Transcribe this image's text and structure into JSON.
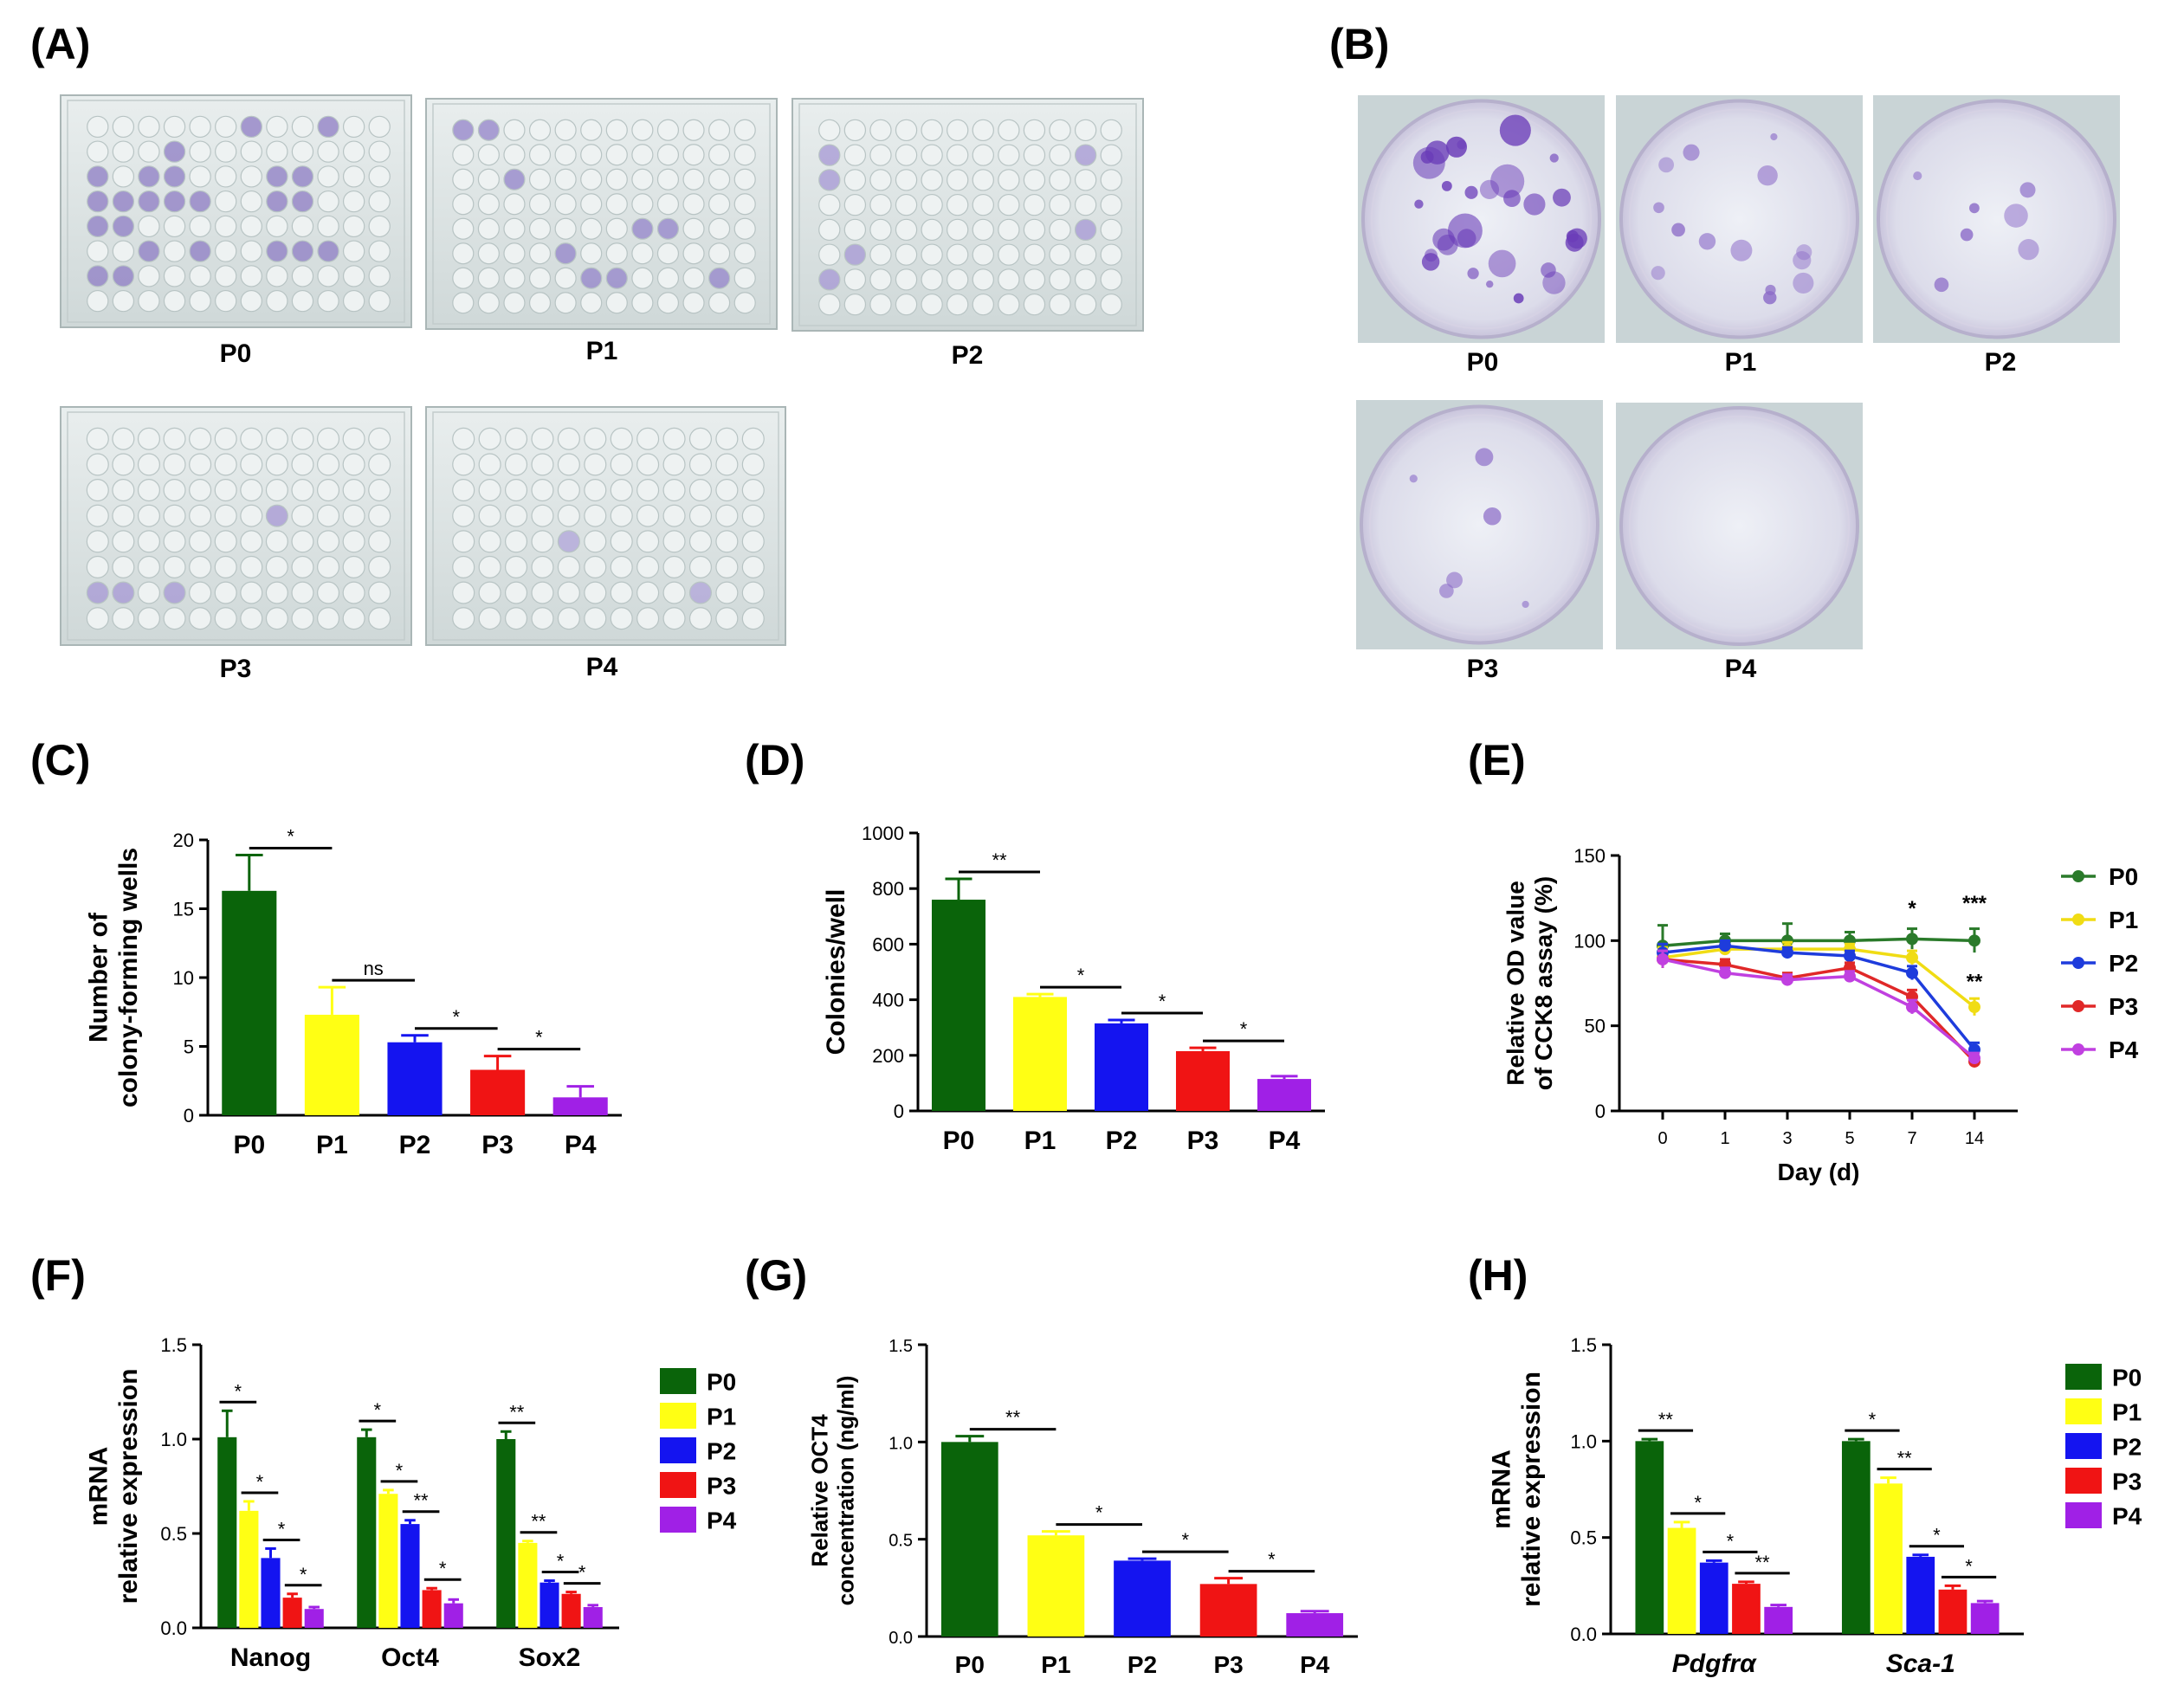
{
  "panels": {
    "A": {
      "label": "(A)",
      "plates": [
        {
          "caption": "P0",
          "stain_color": "#8e7cc4",
          "stained_wells": [
            [
              0,
              6
            ],
            [
              0,
              9
            ],
            [
              1,
              3
            ],
            [
              2,
              0
            ],
            [
              2,
              2
            ],
            [
              2,
              3
            ],
            [
              2,
              7
            ],
            [
              2,
              8
            ],
            [
              3,
              0
            ],
            [
              3,
              1
            ],
            [
              3,
              2
            ],
            [
              3,
              3
            ],
            [
              3,
              4
            ],
            [
              3,
              7
            ],
            [
              3,
              8
            ],
            [
              4,
              0
            ],
            [
              4,
              1
            ],
            [
              5,
              2
            ],
            [
              5,
              4
            ],
            [
              5,
              7
            ],
            [
              5,
              8
            ],
            [
              5,
              9
            ],
            [
              6,
              0
            ],
            [
              6,
              1
            ]
          ]
        },
        {
          "caption": "P1",
          "stain_color": "#9383c9",
          "stained_wells": [
            [
              0,
              0
            ],
            [
              0,
              1
            ],
            [
              2,
              2
            ],
            [
              4,
              7
            ],
            [
              4,
              8
            ],
            [
              5,
              4
            ],
            [
              6,
              5
            ],
            [
              6,
              6
            ],
            [
              6,
              10
            ]
          ]
        },
        {
          "caption": "P2",
          "stain_color": "#a597d4",
          "stained_wells": [
            [
              1,
              0
            ],
            [
              1,
              10
            ],
            [
              2,
              0
            ],
            [
              4,
              10
            ],
            [
              5,
              1
            ],
            [
              6,
              0
            ]
          ]
        },
        {
          "caption": "P3",
          "stain_color": "#a597d4",
          "stained_wells": [
            [
              3,
              7
            ],
            [
              6,
              0
            ],
            [
              6,
              1
            ],
            [
              6,
              3
            ]
          ]
        },
        {
          "caption": "P4",
          "stain_color": "#b0a4d9",
          "stained_wells": [
            [
              4,
              4
            ],
            [
              6,
              9
            ]
          ]
        }
      ]
    },
    "B": {
      "label": "(B)",
      "dishes": [
        {
          "caption": "P0",
          "colony_count": 30
        },
        {
          "caption": "P1",
          "colony_count": 14
        },
        {
          "caption": "P2",
          "colony_count": 7
        },
        {
          "caption": "P3",
          "colony_count": 6
        },
        {
          "caption": "P4",
          "colony_count": 0
        }
      ]
    }
  },
  "colors": {
    "P0": "#0a640a",
    "P1": "#ffff14",
    "P2": "#1414f0",
    "P3": "#f01414",
    "P4": "#a020e6",
    "P0_line": "#2a7a2a",
    "P1_line": "#f0dc14",
    "P2_line": "#1e3cdc",
    "P3_line": "#e02828",
    "P4_line": "#c040e0"
  },
  "chart_data": [
    {
      "id": "C",
      "panel_label": "(C)",
      "type": "bar",
      "ylabel": "Number of\ncolony-forming wells",
      "categories": [
        "P0",
        "P1",
        "P2",
        "P3",
        "P4"
      ],
      "values": [
        16.3,
        7.3,
        5.3,
        3.3,
        1.3
      ],
      "errors": [
        2.6,
        2.0,
        0.5,
        1.0,
        0.8
      ],
      "ylim": [
        0,
        20
      ],
      "yticks": [
        0,
        5,
        10,
        15,
        20
      ],
      "comparisons": [
        {
          "from": 0,
          "to": 1,
          "label": "*"
        },
        {
          "from": 1,
          "to": 2,
          "label": "ns"
        },
        {
          "from": 2,
          "to": 3,
          "label": "*"
        },
        {
          "from": 3,
          "to": 4,
          "label": "*"
        }
      ]
    },
    {
      "id": "D",
      "panel_label": "(D)",
      "type": "bar",
      "ylabel": "Colonies/well",
      "categories": [
        "P0",
        "P1",
        "P2",
        "P3",
        "P4"
      ],
      "values": [
        760,
        410,
        315,
        215,
        115
      ],
      "errors": [
        75,
        10,
        12,
        12,
        10
      ],
      "ylim": [
        0,
        1000
      ],
      "yticks": [
        0,
        200,
        400,
        600,
        800,
        1000
      ],
      "comparisons": [
        {
          "from": 0,
          "to": 1,
          "label": "**"
        },
        {
          "from": 1,
          "to": 2,
          "label": "*"
        },
        {
          "from": 2,
          "to": 3,
          "label": "*"
        },
        {
          "from": 3,
          "to": 4,
          "label": "*"
        }
      ]
    },
    {
      "id": "E",
      "panel_label": "(E)",
      "type": "line",
      "ylabel": "Relative OD value\nof CCK8 assay (%)",
      "xlabel": "Day (d)",
      "x": [
        "0",
        "1",
        "3",
        "5",
        "7",
        "14"
      ],
      "ylim": [
        0,
        150
      ],
      "yticks": [
        0,
        50,
        100,
        150
      ],
      "series": [
        {
          "name": "P0",
          "values": [
            97,
            100,
            100,
            100,
            101,
            100
          ],
          "errors": [
            12,
            4,
            10,
            5,
            6,
            7
          ]
        },
        {
          "name": "P1",
          "values": [
            90,
            95,
            95,
            95,
            90,
            61
          ],
          "errors": [
            6,
            3,
            4,
            3,
            4,
            5
          ]
        },
        {
          "name": "P2",
          "values": [
            93,
            97,
            93,
            91,
            81,
            36
          ],
          "errors": [
            5,
            3,
            3,
            3,
            4,
            4
          ]
        },
        {
          "name": "P3",
          "values": [
            89,
            86,
            78,
            84,
            67,
            29
          ],
          "errors": [
            5,
            3,
            3,
            3,
            4,
            3
          ]
        },
        {
          "name": "P4",
          "values": [
            89,
            81,
            77,
            79,
            61,
            31
          ],
          "errors": [
            5,
            3,
            3,
            3,
            4,
            3
          ]
        }
      ],
      "annotations": [
        {
          "x": "7",
          "y": 115,
          "label": "*"
        },
        {
          "x": "14",
          "y": 118,
          "label": "***"
        },
        {
          "x": "14",
          "y": 72,
          "label": "**"
        }
      ],
      "legend": [
        "P0",
        "P1",
        "P2",
        "P3",
        "P4"
      ]
    },
    {
      "id": "F",
      "panel_label": "(F)",
      "type": "bar",
      "ylabel": "mRNA\nrelative expression",
      "groups": [
        "Nanog",
        "Oct4",
        "Sox2"
      ],
      "series_names": [
        "P0",
        "P1",
        "P2",
        "P3",
        "P4"
      ],
      "values": [
        [
          1.01,
          0.62,
          0.37,
          0.16,
          0.1
        ],
        [
          1.01,
          0.71,
          0.55,
          0.2,
          0.13
        ],
        [
          1.0,
          0.45,
          0.24,
          0.18,
          0.11
        ]
      ],
      "errors": [
        [
          0.14,
          0.05,
          0.05,
          0.02,
          0.01
        ],
        [
          0.04,
          0.02,
          0.02,
          0.01,
          0.02
        ],
        [
          0.04,
          0.01,
          0.01,
          0.01,
          0.01
        ]
      ],
      "ylim": [
        0,
        1.5
      ],
      "yticks": [
        "0.0",
        "0.5",
        "1.0",
        "1.5"
      ],
      "comparisons": [
        [
          "*",
          "*",
          "*",
          "*"
        ],
        [
          "*",
          "*",
          "**",
          "*"
        ],
        [
          "**",
          "**",
          "*",
          "*"
        ]
      ],
      "legend": [
        "P0",
        "P1",
        "P2",
        "P3",
        "P4"
      ]
    },
    {
      "id": "G",
      "panel_label": "(G)",
      "type": "bar",
      "ylabel": "Relative OCT4\nconcentration (ng/ml)",
      "categories": [
        "P0",
        "P1",
        "P2",
        "P3",
        "P4"
      ],
      "values": [
        1.0,
        0.52,
        0.39,
        0.27,
        0.12
      ],
      "errors": [
        0.03,
        0.02,
        0.01,
        0.03,
        0.01
      ],
      "ylim": [
        0,
        1.5
      ],
      "yticks": [
        "0.0",
        "0.5",
        "1.0",
        "1.5"
      ],
      "comparisons": [
        {
          "from": 0,
          "to": 1,
          "label": "**"
        },
        {
          "from": 1,
          "to": 2,
          "label": "*"
        },
        {
          "from": 2,
          "to": 3,
          "label": "*"
        },
        {
          "from": 3,
          "to": 4,
          "label": "*"
        }
      ]
    },
    {
      "id": "H",
      "panel_label": "(H)",
      "type": "bar",
      "ylabel": "mRNA\nrelative expression",
      "groups": [
        "Pdgfrα",
        "Sca-1"
      ],
      "groups_italic": true,
      "series_names": [
        "P0",
        "P1",
        "P2",
        "P3",
        "P4"
      ],
      "values": [
        [
          1.0,
          0.55,
          0.37,
          0.26,
          0.14
        ],
        [
          1.0,
          0.78,
          0.4,
          0.23,
          0.16
        ]
      ],
      "errors": [
        [
          0.01,
          0.03,
          0.01,
          0.01,
          0.01
        ],
        [
          0.01,
          0.03,
          0.01,
          0.02,
          0.01
        ]
      ],
      "ylim": [
        0,
        1.5
      ],
      "yticks": [
        "0.0",
        "0.5",
        "1.0",
        "1.5"
      ],
      "comparisons": [
        [
          "**",
          "*",
          "*",
          "**"
        ],
        [
          "*",
          "**",
          "*",
          "*"
        ]
      ],
      "legend": [
        "P0",
        "P1",
        "P2",
        "P3",
        "P4"
      ]
    }
  ]
}
